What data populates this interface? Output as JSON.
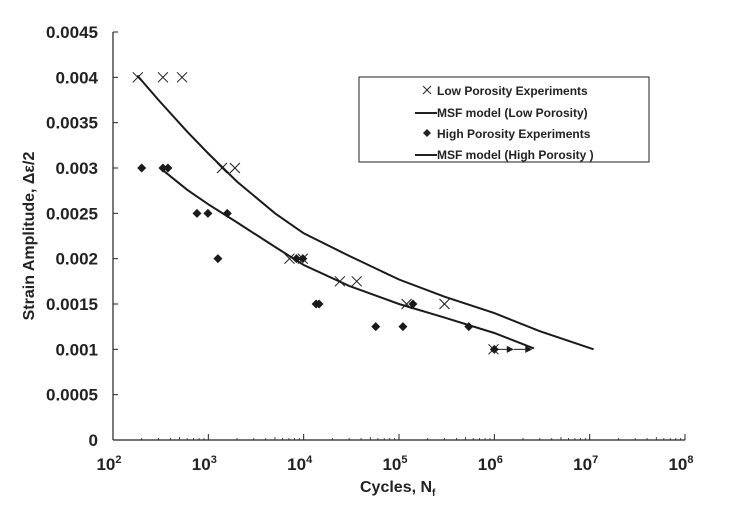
{
  "chart_data": {
    "type": "scatter",
    "title": "",
    "xlabel": "Cycles, N",
    "xlabel_sub": "f",
    "ylabel": "Strain Amplitude, Δε/2",
    "xscale": "log",
    "xlim": [
      100,
      100000000
    ],
    "ylim": [
      0,
      0.0045
    ],
    "grid": false,
    "legend_position": "top-right",
    "y_ticks": [
      "0",
      "0.0005",
      "0.001",
      "0.0015",
      "0.002",
      "0.0025",
      "0.003",
      "0.0035",
      "0.004",
      "0.0045"
    ],
    "y_tick_values": [
      0,
      0.0005,
      0.001,
      0.0015,
      0.002,
      0.0025,
      0.003,
      0.0035,
      0.004,
      0.0045
    ],
    "x_ticks": [
      {
        "base": "10",
        "exp": "2",
        "value": 100
      },
      {
        "base": "10",
        "exp": "3",
        "value": 1000
      },
      {
        "base": "10",
        "exp": "4",
        "value": 10000
      },
      {
        "base": "10",
        "exp": "5",
        "value": 100000
      },
      {
        "base": "10",
        "exp": "6",
        "value": 1000000
      },
      {
        "base": "10",
        "exp": "7",
        "value": 10000000
      },
      {
        "base": "10",
        "exp": "8",
        "value": 100000000
      }
    ],
    "series": [
      {
        "name": "Low Porosity Experiments",
        "kind": "marker-x",
        "points": [
          [
            182,
            0.004
          ],
          [
            334,
            0.004
          ],
          [
            530,
            0.004
          ],
          [
            1390,
            0.003
          ],
          [
            1900,
            0.003
          ],
          [
            7100,
            0.002
          ],
          [
            9800,
            0.002
          ],
          [
            24000,
            0.00175
          ],
          [
            36000,
            0.00175
          ],
          [
            120000,
            0.0015
          ],
          [
            300000,
            0.0015
          ],
          [
            980000,
            0.001
          ]
        ]
      },
      {
        "name": "MSF model (Low Porosity)",
        "kind": "line",
        "points": [
          [
            180,
            0.00402
          ],
          [
            300,
            0.00375
          ],
          [
            600,
            0.0034
          ],
          [
            1000,
            0.00316
          ],
          [
            2000,
            0.00285
          ],
          [
            5000,
            0.0025
          ],
          [
            10000,
            0.00228
          ],
          [
            30000,
            0.00203
          ],
          [
            100000,
            0.00177
          ],
          [
            300000,
            0.00158
          ],
          [
            1000000,
            0.0014
          ],
          [
            3000000,
            0.0012
          ],
          [
            11000000,
            0.001
          ]
        ]
      },
      {
        "name": "High Porosity Experiments",
        "kind": "marker-diamond",
        "points": [
          [
            200,
            0.003
          ],
          [
            334,
            0.003
          ],
          [
            377,
            0.003
          ],
          [
            760,
            0.0025
          ],
          [
            990,
            0.0025
          ],
          [
            1580,
            0.0025
          ],
          [
            1260,
            0.002
          ],
          [
            8400,
            0.002
          ],
          [
            9800,
            0.002
          ],
          [
            13500,
            0.0015
          ],
          [
            14500,
            0.0015
          ],
          [
            57000,
            0.00125
          ],
          [
            110000,
            0.00125
          ],
          [
            140000,
            0.0015
          ],
          [
            540000,
            0.00125
          ],
          [
            1000000,
            0.001
          ]
        ]
      },
      {
        "name": "MSF model (High Porosity )",
        "kind": "line",
        "points": [
          [
            330,
            0.00298
          ],
          [
            600,
            0.00276
          ],
          [
            1000,
            0.0026
          ],
          [
            2000,
            0.0024
          ],
          [
            5000,
            0.00213
          ],
          [
            10000,
            0.00193
          ],
          [
            30000,
            0.0017
          ],
          [
            100000,
            0.0015
          ],
          [
            300000,
            0.00135
          ],
          [
            1000000,
            0.00118
          ],
          [
            2600000,
            0.00101
          ]
        ]
      }
    ],
    "runouts": [
      {
        "from": 1000000,
        "to": 1600000,
        "y": 0.001
      },
      {
        "from": 1600000,
        "to": 2500000,
        "y": 0.001
      }
    ]
  },
  "legend": {
    "items": [
      {
        "label": "Low Porosity Experiments",
        "symbol": "x-marker"
      },
      {
        "label": "MSF model (Low Porosity)",
        "symbol": "line"
      },
      {
        "label": "High Porosity Experiments",
        "symbol": "diamond-marker"
      },
      {
        "label": "MSF model (High Porosity )",
        "symbol": "line"
      }
    ]
  },
  "colors": {
    "ink": "#1a1a1a",
    "background": "#ffffff"
  }
}
